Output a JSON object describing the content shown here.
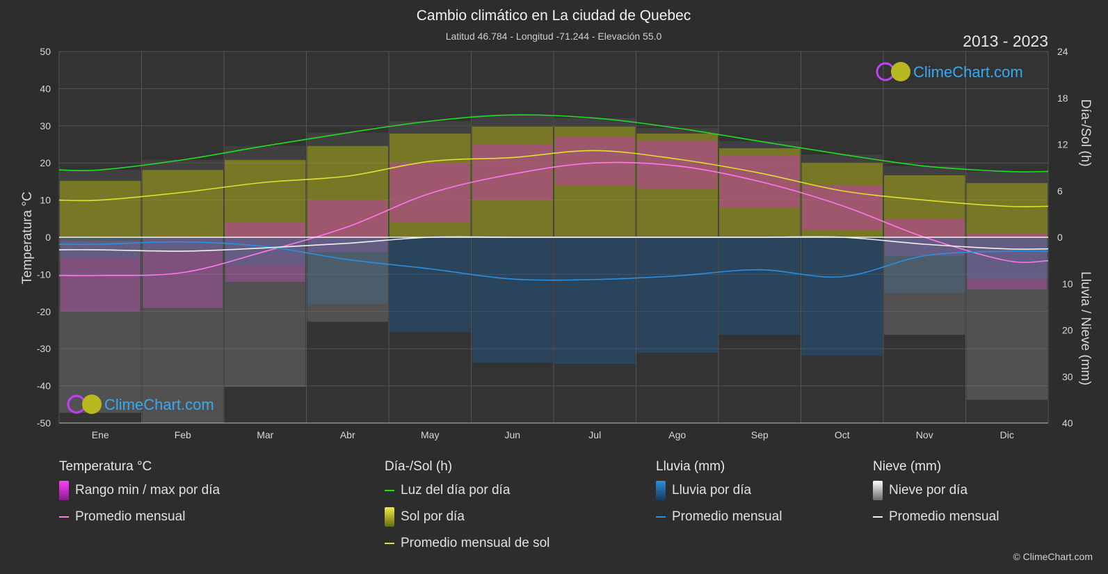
{
  "header": {
    "title": "Cambio climático en La ciudad de Quebec",
    "subtitle": "Latitud 46.784 - Longitud -71.244 - Elevación 55.0",
    "years": "2013 - 2023"
  },
  "logo_text": "ClimeChart.com",
  "copyright": "© ClimeChart.com",
  "colors": {
    "background": "#2d2d2d",
    "daylight": "#22dd22",
    "sunshine_avg": "#e0e030",
    "sunshine_fill": "#8f8f22",
    "temp_avg": "#ff77ee",
    "temp_range": "#d030c8",
    "rain_avg": "#2b8fe0",
    "rain_fill": "#1f5a8c",
    "snow_avg": "#f0f0f0",
    "snow_fill": "#8a8a8a"
  },
  "chart_data": {
    "type": "line",
    "x": [
      "Ene",
      "Feb",
      "Mar",
      "Abr",
      "May",
      "Jun",
      "Jul",
      "Ago",
      "Sep",
      "Oct",
      "Nov",
      "Dic"
    ],
    "left_axis": {
      "label": "Temperatura °C",
      "ticks": [
        "50",
        "40",
        "30",
        "20",
        "10",
        "0",
        "-10",
        "-20",
        "-30",
        "-40",
        "-50"
      ],
      "ylim": [
        -50,
        50
      ]
    },
    "right_axis_top": {
      "label": "Día-/Sol (h)",
      "ticks": [
        "24",
        "18",
        "12",
        "6",
        "0"
      ],
      "ylim": [
        0,
        24
      ]
    },
    "right_axis_bottom": {
      "label": "Lluvia / Nieve (mm)",
      "ticks": [
        "0",
        "10",
        "20",
        "30",
        "40"
      ],
      "ylim": [
        0,
        40
      ]
    },
    "grid": true,
    "series": [
      {
        "name": "Luz del día por día",
        "axis": "right_top",
        "values": [
          8.7,
          10.0,
          11.8,
          13.5,
          15.0,
          15.8,
          15.4,
          14.1,
          12.4,
          10.7,
          9.2,
          8.5
        ]
      },
      {
        "name": "Promedio mensual de sol",
        "axis": "right_top",
        "values": [
          4.8,
          5.8,
          7.1,
          7.9,
          9.8,
          10.3,
          11.2,
          10.1,
          8.3,
          6.0,
          4.8,
          4.0
        ]
      },
      {
        "name": "Sol por día",
        "axis": "right_top",
        "values": [
          7.3,
          8.7,
          10.0,
          11.8,
          13.4,
          14.3,
          14.3,
          13.4,
          11.5,
          9.6,
          8.0,
          7.0
        ]
      },
      {
        "name": "Promedio mensual",
        "group": "temperature",
        "axis": "left",
        "values": [
          -10.3,
          -9.5,
          -3.8,
          2.8,
          11.8,
          17.0,
          20.0,
          19.2,
          15.0,
          8.5,
          0.0,
          -6.3
        ]
      },
      {
        "name": "Rango min / max por día",
        "group": "temperature",
        "axis": "left",
        "min": [
          -20,
          -19,
          -12,
          -4,
          4,
          10,
          14,
          13,
          8,
          2,
          -5,
          -14
        ],
        "max": [
          -1,
          0,
          4,
          10,
          20,
          25,
          27,
          26,
          22,
          14,
          5,
          1
        ]
      },
      {
        "name": "Promedio mensual",
        "group": "rain",
        "axis": "right_bottom",
        "values": [
          1.5,
          1.0,
          2.0,
          4.8,
          6.8,
          9.0,
          9.1,
          8.3,
          7.0,
          8.5,
          4.0,
          3.0
        ]
      },
      {
        "name": "Promedio mensual",
        "group": "snow",
        "axis": "right_bottom",
        "values": [
          2.7,
          3.0,
          2.3,
          1.3,
          0.0,
          0.0,
          0.0,
          0.0,
          0.0,
          0.0,
          1.5,
          2.5
        ]
      }
    ]
  },
  "legend": {
    "groups": [
      {
        "title": "Temperatura °C",
        "items": [
          {
            "label": "Rango min / max por día",
            "kind": "box",
            "color": "#d030c8"
          },
          {
            "label": "Promedio mensual",
            "kind": "line",
            "color": "#ff77ee"
          }
        ]
      },
      {
        "title": "Día-/Sol (h)",
        "items": [
          {
            "label": "Luz del día por día",
            "kind": "line",
            "color": "#22dd22"
          },
          {
            "label": "Sol por día",
            "kind": "box",
            "color": "#c8c828"
          },
          {
            "label": "Promedio mensual de sol",
            "kind": "line",
            "color": "#e0e030"
          }
        ]
      },
      {
        "title": "Lluvia (mm)",
        "items": [
          {
            "label": "Lluvia por día",
            "kind": "box",
            "color": "#2b8fe0"
          },
          {
            "label": "Promedio mensual",
            "kind": "line",
            "color": "#2b8fe0"
          }
        ]
      },
      {
        "title": "Nieve (mm)",
        "items": [
          {
            "label": "Nieve por día",
            "kind": "box",
            "color": "#e8e8e8"
          },
          {
            "label": "Promedio mensual",
            "kind": "line",
            "color": "#f0f0f0"
          }
        ]
      }
    ]
  }
}
